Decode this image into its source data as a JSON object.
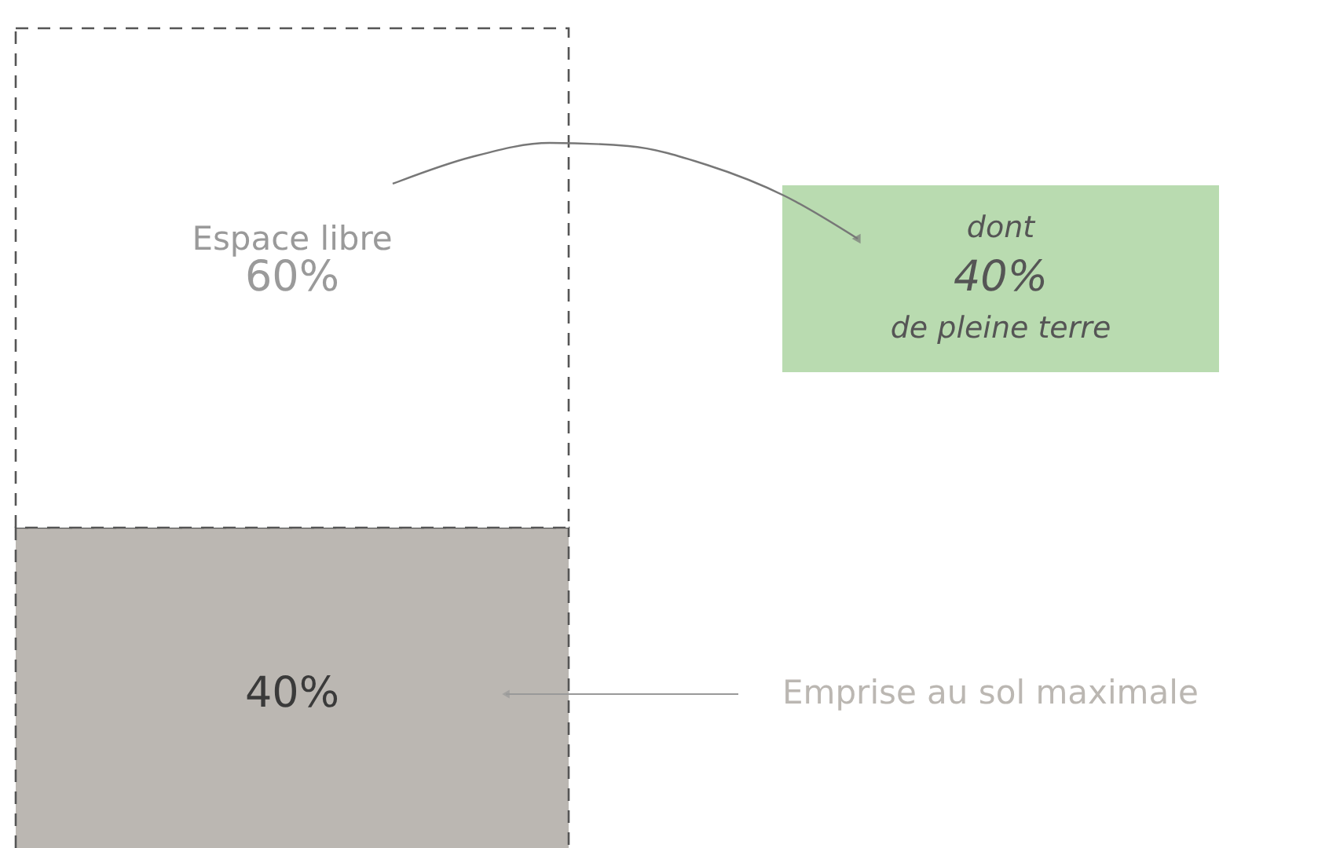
{
  "chart_data": {
    "type": "bar",
    "stacked": true,
    "categories": [
      null
    ],
    "tick_labels": false,
    "line_style": "dashed",
    "series": [
      {
        "name": "Emprise au sol maximale",
        "color": "#bbb7b2",
        "values": [
          40
        ],
        "value_labels": [
          "40%"
        ]
      },
      {
        "name": "Espace libre",
        "color": "#ffffff",
        "values": [
          60
        ],
        "value_labels": [
          "60%"
        ]
      }
    ],
    "annotations": [
      "dont\n40%\nde pleine terre"
    ]
  }
}
